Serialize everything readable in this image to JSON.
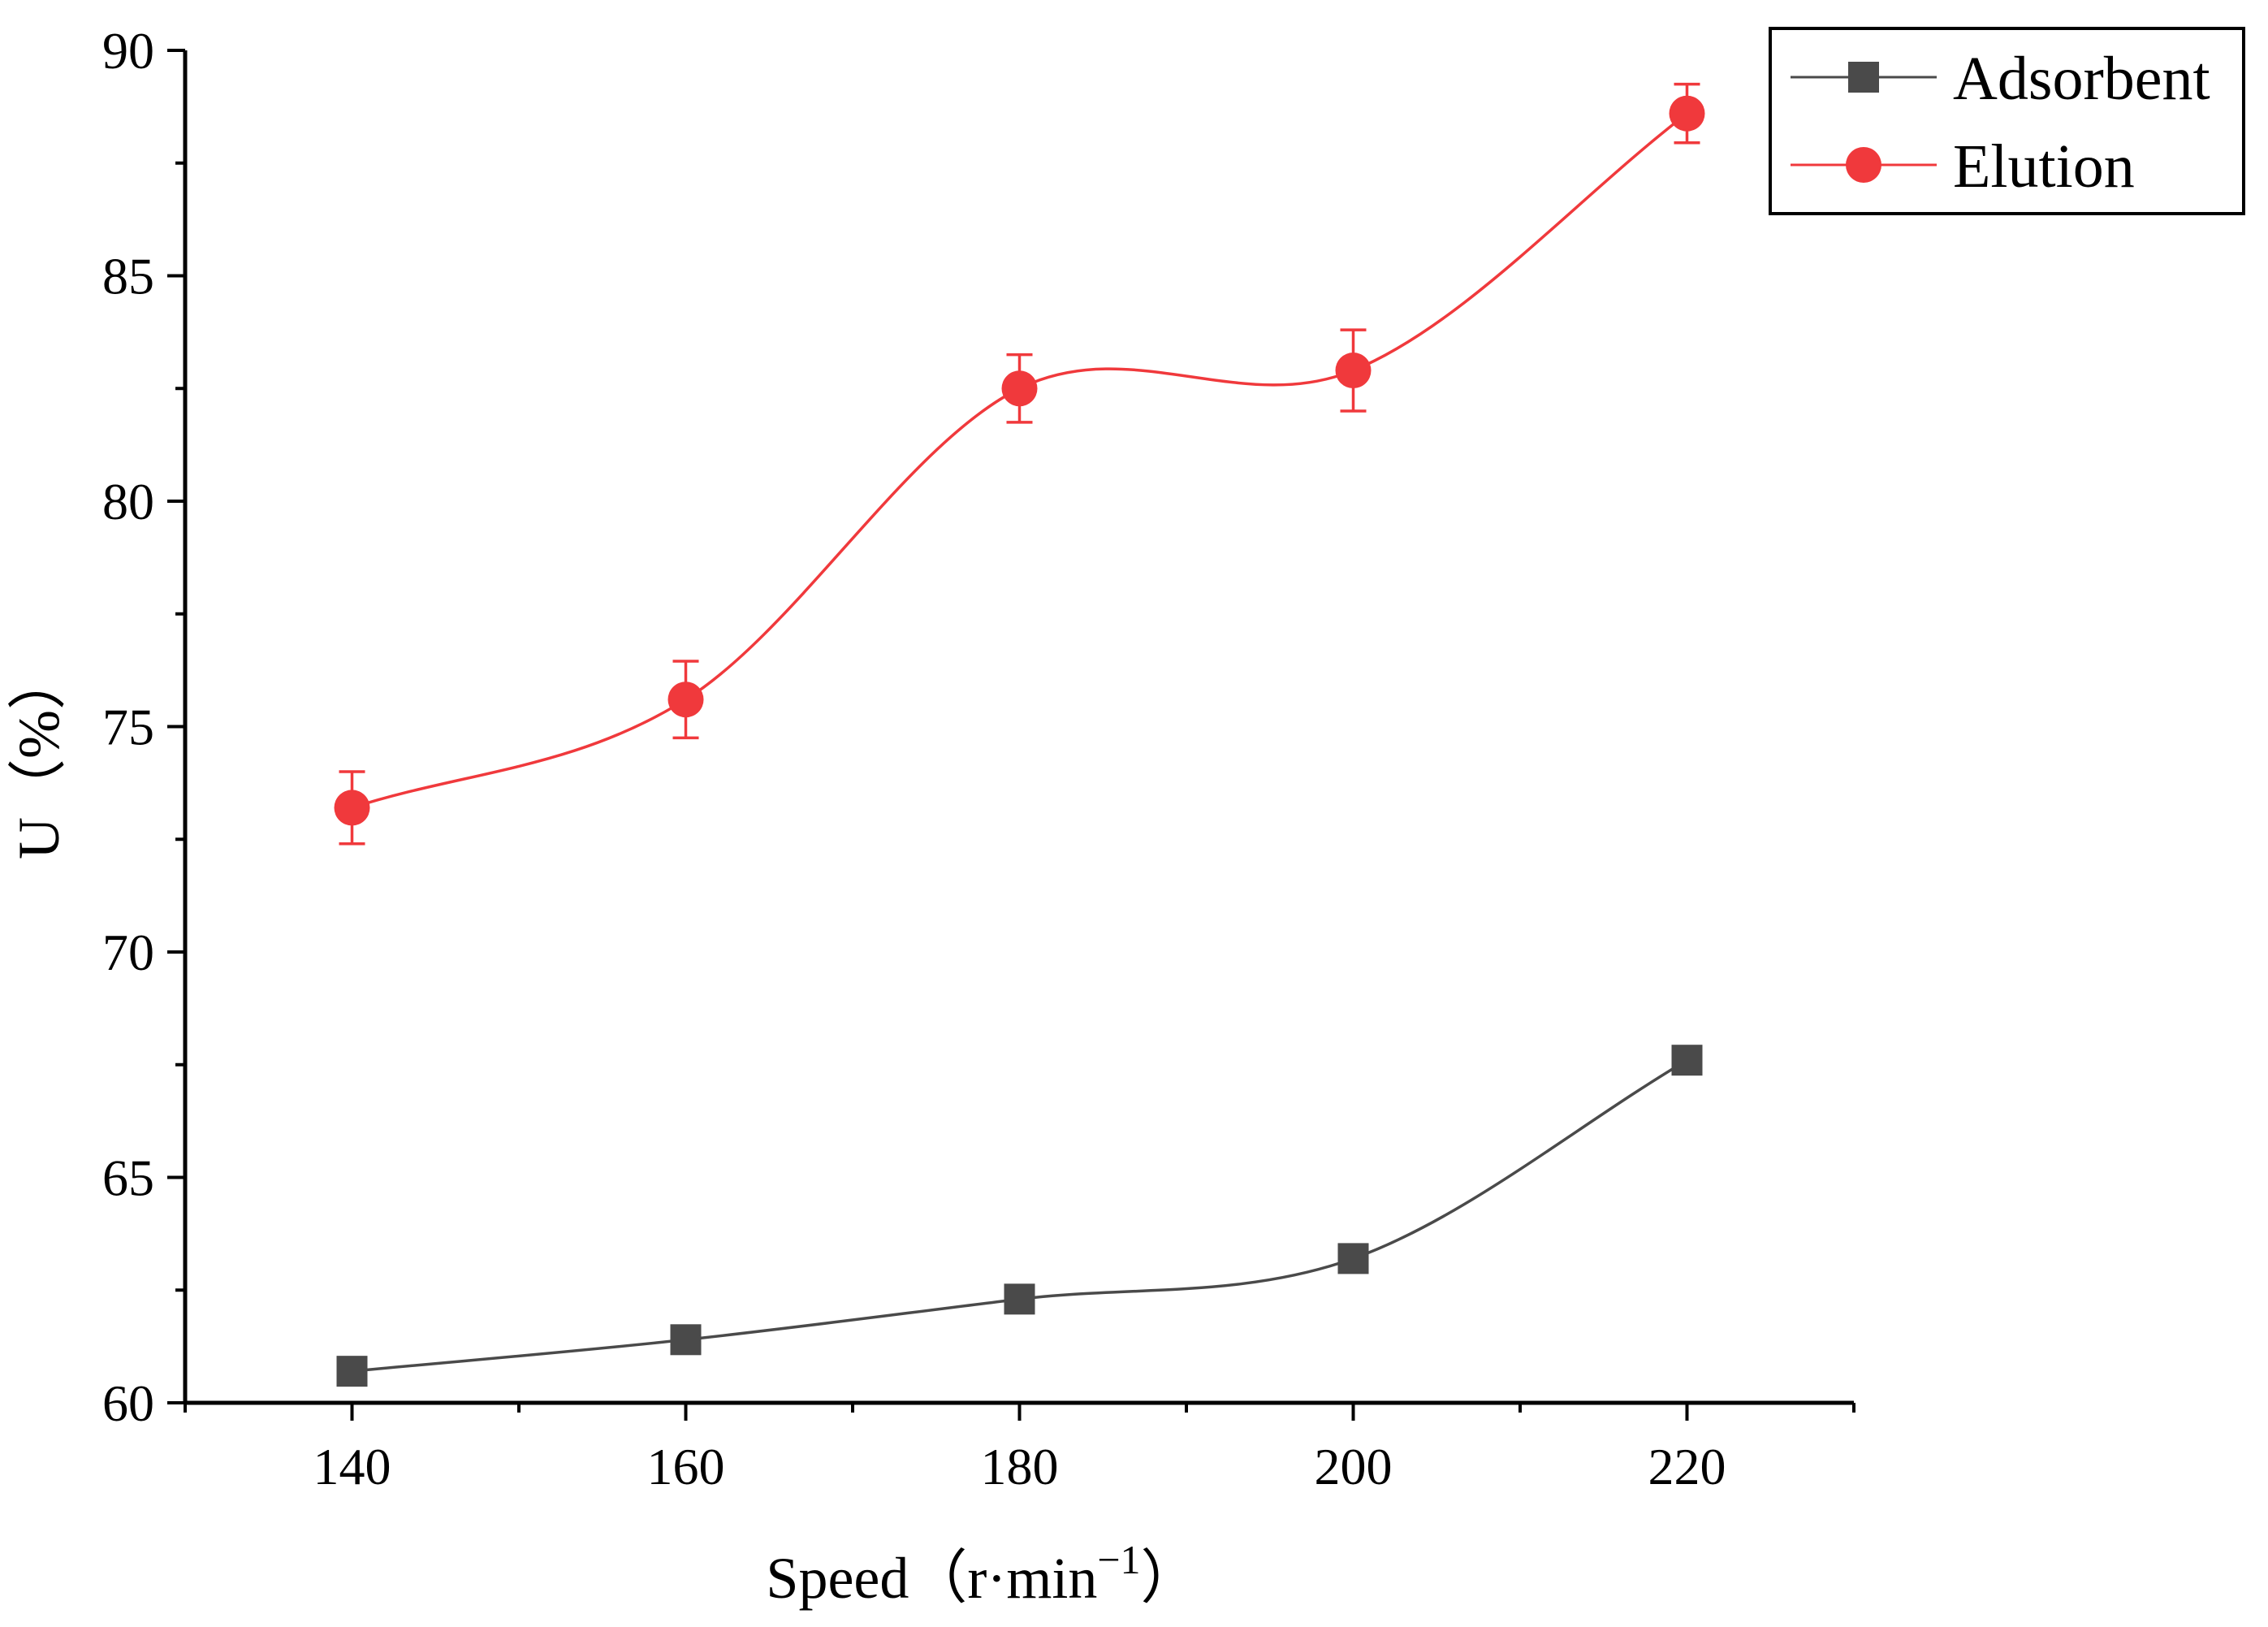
{
  "chart_data": {
    "type": "line",
    "xlabel": "Speed（r·min",
    "xlabel_superscript": "−1",
    "xlabel_close": "）",
    "ylabel": "U（%）",
    "xlim": [
      130,
      230
    ],
    "ylim": [
      60,
      90
    ],
    "x_major_ticks": [
      140,
      160,
      180,
      200,
      220
    ],
    "x_tick_labels": [
      "140",
      "160",
      "180",
      "200",
      "220"
    ],
    "x_minor_ticks": [
      130,
      150,
      170,
      190,
      210,
      230
    ],
    "y_major_ticks": [
      60,
      65,
      70,
      75,
      80,
      85,
      90
    ],
    "y_tick_labels": [
      "60",
      "65",
      "70",
      "75",
      "80",
      "85",
      "90"
    ],
    "y_minor_ticks": [
      62.5,
      67.5,
      72.5,
      77.5,
      82.5,
      87.5
    ],
    "legend_position": "top-right",
    "series": [
      {
        "name": "Adsorbent",
        "marker": "square",
        "color": "#4a4a4a",
        "x": [
          140,
          160,
          180,
          200,
          220
        ],
        "values": [
          60.7,
          61.4,
          62.3,
          63.2,
          67.6
        ],
        "errors": [
          0,
          0,
          0,
          0,
          0
        ]
      },
      {
        "name": "Elution",
        "marker": "circle",
        "color": "#f0393c",
        "x": [
          140,
          160,
          180,
          200,
          220
        ],
        "values": [
          73.2,
          75.6,
          82.5,
          82.9,
          88.6
        ],
        "errors": [
          0.8,
          0.85,
          0.75,
          0.9,
          0.65
        ]
      }
    ]
  }
}
